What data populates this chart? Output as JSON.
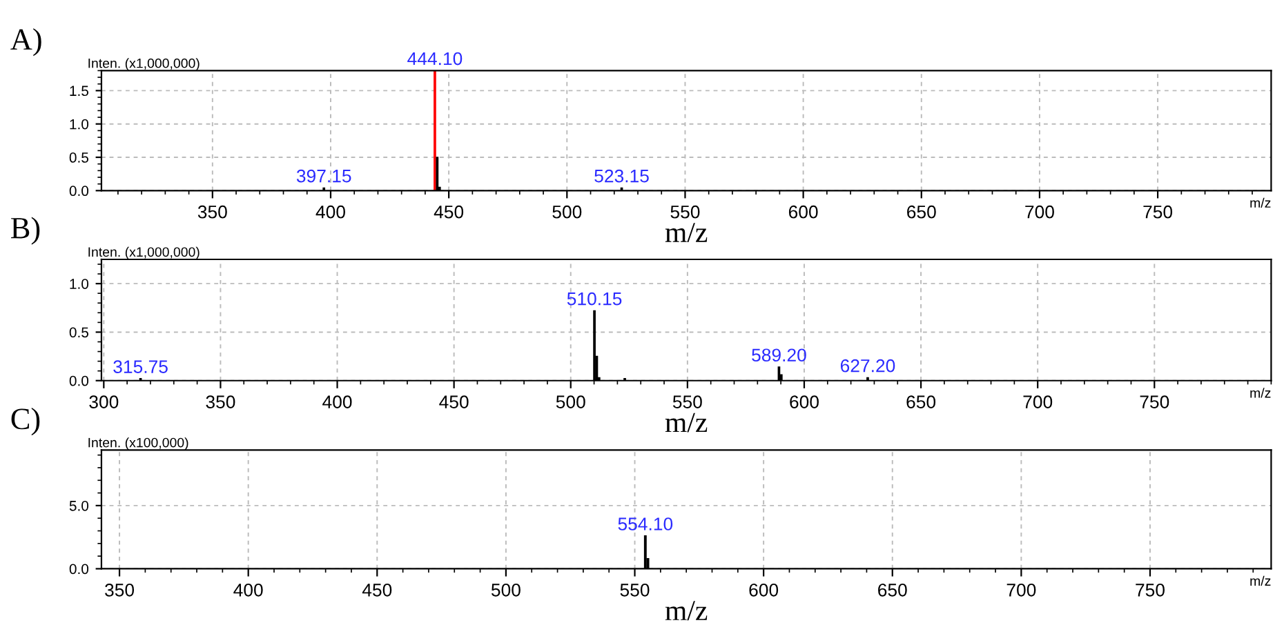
{
  "chart_data": [
    {
      "type": "bar",
      "title": "A)",
      "xlabel": "m/z",
      "ylabel": "Inten. (x1,000,000)",
      "annotations": [
        "m/z",
        {
          "text": "397.15",
          "x": 397.15,
          "y": 0.04
        },
        {
          "text": "444.10",
          "x": 444.1,
          "y": 1.8
        },
        {
          "text": "523.15",
          "x": 523.15,
          "y": 0.04
        }
      ],
      "x": [
        397.15,
        444.1,
        445.1,
        446.1,
        523.15
      ],
      "values": [
        0.04,
        1.8,
        0.5,
        0.05,
        0.04
      ],
      "colors": [
        "#000000",
        "#ff0000",
        "#000000",
        "#000000",
        "#000000"
      ],
      "xlim": [
        303,
        798
      ],
      "xticks": [
        350,
        400,
        450,
        500,
        550,
        600,
        650,
        700,
        750
      ],
      "ylim": [
        0,
        1.8
      ],
      "yticks": [
        {
          "value": 0,
          "label": "0.0"
        },
        {
          "value": 0.5,
          "label": "0.5"
        },
        {
          "value": 1.0,
          "label": "1.0"
        },
        {
          "value": 1.5,
          "label": "1.5"
        }
      ],
      "grid": true
    },
    {
      "type": "bar",
      "title": "B)",
      "xlabel": "m/z",
      "ylabel": "Inten. (x1,000,000)",
      "annotations": [
        "m/z",
        {
          "text": "315.75",
          "x": 315.75,
          "y": 0.02
        },
        {
          "text": "510.15",
          "x": 510.15,
          "y": 0.72
        },
        {
          "text": "589.20",
          "x": 589.2,
          "y": 0.14
        },
        {
          "text": "627.20",
          "x": 627.2,
          "y": 0.03
        }
      ],
      "x": [
        315.75,
        510.15,
        511.15,
        512.15,
        523.15,
        589.2,
        590.2,
        627.2
      ],
      "values": [
        0.02,
        0.72,
        0.25,
        0.03,
        0.02,
        0.14,
        0.06,
        0.03
      ],
      "colors": [
        "#000000",
        "#000000",
        "#000000",
        "#000000",
        "#000000",
        "#000000",
        "#000000",
        "#000000"
      ],
      "xlim": [
        299,
        800
      ],
      "xticks": [
        300,
        350,
        400,
        450,
        500,
        550,
        600,
        650,
        700,
        750
      ],
      "ylim": [
        0,
        1.25
      ],
      "yticks": [
        {
          "value": 0,
          "label": "0.0"
        },
        {
          "value": 0.5,
          "label": "0.5"
        },
        {
          "value": 1.0,
          "label": "1.0"
        }
      ],
      "grid": true
    },
    {
      "type": "bar",
      "title": "C)",
      "xlabel": "m/z",
      "ylabel": "Inten. (x100,000)",
      "annotations": [
        "m/z",
        {
          "text": "554.10",
          "x": 554.1,
          "y": 2.6
        }
      ],
      "x": [
        554.1,
        555.1
      ],
      "values": [
        2.6,
        0.8
      ],
      "colors": [
        "#000000",
        "#000000"
      ],
      "xlim": [
        343,
        797
      ],
      "xticks": [
        350,
        400,
        450,
        500,
        550,
        600,
        650,
        700,
        750
      ],
      "ylim": [
        0,
        9.4
      ],
      "yticks": [
        {
          "value": 0,
          "label": "0.0"
        },
        {
          "value": 5.0,
          "label": "5.0"
        }
      ],
      "grid": true
    }
  ]
}
